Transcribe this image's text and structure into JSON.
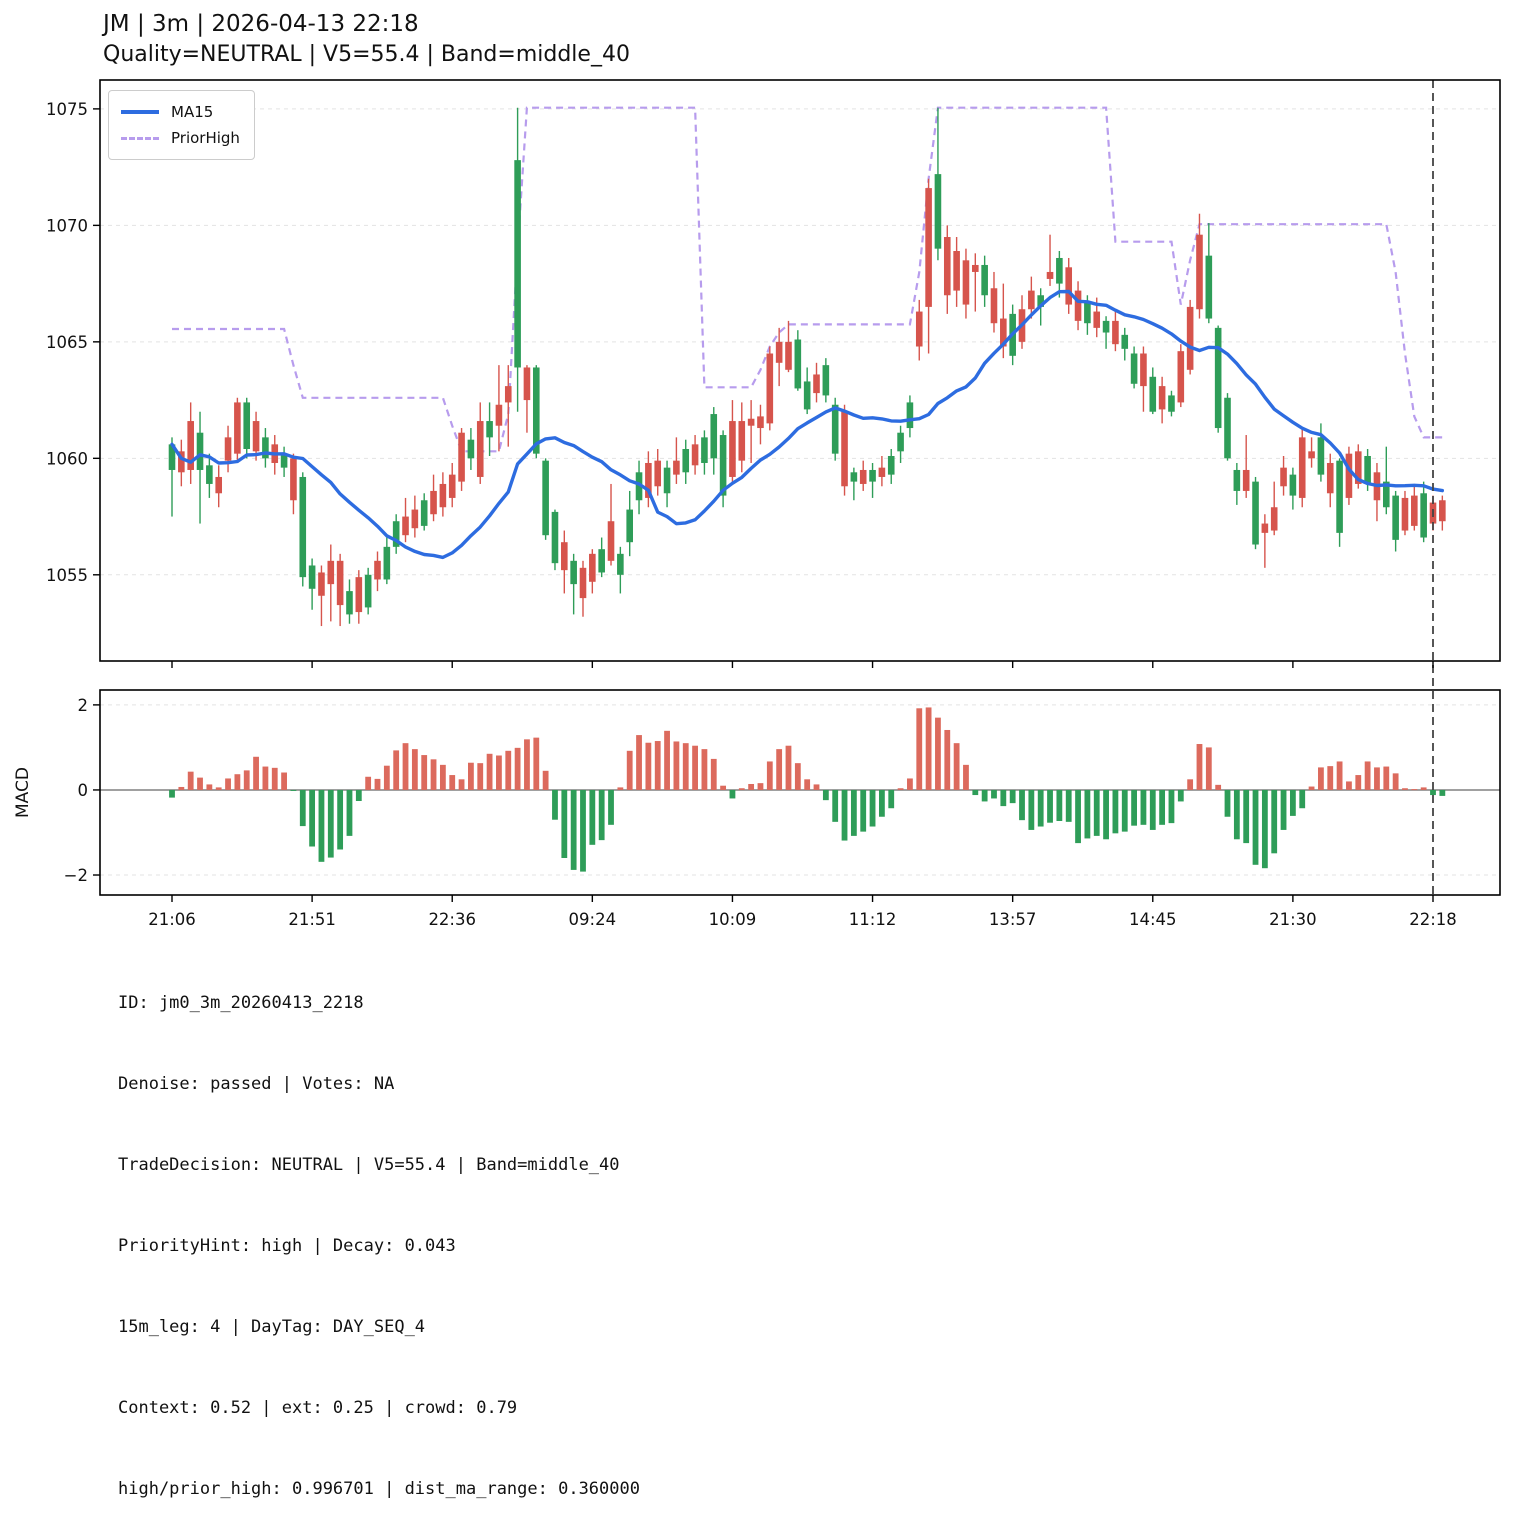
{
  "header": {
    "title": "JM | 3m | 2026-04-13 22:18",
    "subtitle": "Quality=NEUTRAL | V5=55.4 | Band=middle_40"
  },
  "legend": {
    "items": [
      {
        "label": "MA15",
        "style": "solid",
        "color": "#2d6ce0"
      },
      {
        "label": "PriorHigh",
        "style": "dashed",
        "color": "#b79ced"
      }
    ]
  },
  "footer": {
    "lines": [
      "ID: jm0_3m_20260413_2218",
      "Denoise: passed | Votes: NA",
      "TradeDecision: NEUTRAL | V5=55.4 | Band=middle_40",
      "PriorityHint: high | Decay: 0.043",
      "15m_leg: 4 | DayTag: DAY_SEQ_4",
      "Context: 0.52 | ext: 0.25 | crowd: 0.79",
      "high/prior_high: 0.996701 | dist_ma_range: 0.360000"
    ]
  },
  "colors": {
    "up": "#2e9d58",
    "down": "#d6544c",
    "macd_up": "#2e9d58",
    "macd_down": "#dc6a5d",
    "ma15": "#2d6ce0",
    "prior_high": "#b79ced",
    "grid": "#e3e3e3",
    "spine": "#000000",
    "vline": "#444444",
    "zero_line": "#808080",
    "text": "#111111"
  },
  "chart_data": [
    {
      "type": "candlestick",
      "title": "JM | 3m | 2026-04-13 22:18",
      "ylabel": "",
      "ylim": [
        1051.3,
        1076.24
      ],
      "yticks": [
        1055,
        1060,
        1065,
        1070,
        1075
      ],
      "x_tick_indices": [
        0,
        15,
        30,
        45,
        60,
        75,
        90,
        105,
        120,
        135
      ],
      "x_tick_labels": [
        "21:06",
        "21:51",
        "22:36",
        "09:24",
        "10:09",
        "11:12",
        "13:57",
        "14:45",
        "21:30",
        "22:18"
      ],
      "vline_index": 135,
      "legend_position": "upper-left",
      "grid": true,
      "ma15_period": 15,
      "ohlc": [
        [
          1059.5,
          1060.9,
          1057.5,
          1060.6
        ],
        [
          1060.3,
          1060.8,
          1058.8,
          1059.4
        ],
        [
          1061.6,
          1062.4,
          1058.9,
          1059.5
        ],
        [
          1059.5,
          1062.0,
          1057.2,
          1061.1
        ],
        [
          1058.9,
          1060.2,
          1058.3,
          1059.7
        ],
        [
          1059.2,
          1059.7,
          1057.9,
          1058.5
        ],
        [
          1060.9,
          1061.4,
          1059.4,
          1059.9
        ],
        [
          1062.4,
          1062.6,
          1059.9,
          1060.2
        ],
        [
          1060.4,
          1062.6,
          1060.0,
          1062.4
        ],
        [
          1061.6,
          1062.0,
          1059.9,
          1060.3
        ],
        [
          1060.0,
          1061.3,
          1059.6,
          1060.9
        ],
        [
          1060.6,
          1061.0,
          1059.3,
          1059.8
        ],
        [
          1059.6,
          1060.5,
          1059.2,
          1060.2
        ],
        [
          1060.0,
          1060.2,
          1057.6,
          1058.2
        ],
        [
          1054.9,
          1059.4,
          1054.5,
          1059.2
        ],
        [
          1054.4,
          1055.7,
          1053.5,
          1055.4
        ],
        [
          1055.1,
          1055.4,
          1052.8,
          1054.1
        ],
        [
          1055.6,
          1056.3,
          1053.0,
          1054.6
        ],
        [
          1055.6,
          1055.9,
          1052.8,
          1053.7
        ],
        [
          1053.3,
          1054.8,
          1052.9,
          1054.3
        ],
        [
          1054.9,
          1055.2,
          1052.9,
          1053.4
        ],
        [
          1053.6,
          1055.3,
          1053.3,
          1055.0
        ],
        [
          1055.6,
          1056.0,
          1054.3,
          1054.8
        ],
        [
          1054.8,
          1056.6,
          1054.6,
          1056.2
        ],
        [
          1056.2,
          1057.6,
          1055.9,
          1057.3
        ],
        [
          1057.5,
          1058.3,
          1056.4,
          1056.7
        ],
        [
          1057.8,
          1058.4,
          1056.6,
          1057.0
        ],
        [
          1057.1,
          1058.5,
          1056.9,
          1058.2
        ],
        [
          1058.6,
          1059.3,
          1057.3,
          1057.6
        ],
        [
          1058.9,
          1059.4,
          1057.5,
          1057.9
        ],
        [
          1059.3,
          1059.8,
          1057.9,
          1058.3
        ],
        [
          1061.1,
          1061.3,
          1058.6,
          1059.0
        ],
        [
          1060.0,
          1061.3,
          1059.5,
          1060.8
        ],
        [
          1061.6,
          1062.4,
          1058.9,
          1059.2
        ],
        [
          1060.9,
          1062.4,
          1060.1,
          1061.6
        ],
        [
          1062.3,
          1064.0,
          1060.3,
          1061.4
        ],
        [
          1063.1,
          1064.0,
          1060.5,
          1062.4
        ],
        [
          1063.9,
          1075.05,
          1062.0,
          1072.8
        ],
        [
          1063.9,
          1064.0,
          1061.1,
          1062.5
        ],
        [
          1060.2,
          1064.0,
          1060.0,
          1063.9
        ],
        [
          1056.7,
          1060.0,
          1056.5,
          1059.9
        ],
        [
          1055.5,
          1057.8,
          1055.2,
          1057.7
        ],
        [
          1056.4,
          1056.9,
          1054.2,
          1055.2
        ],
        [
          1054.6,
          1055.9,
          1053.3,
          1055.6
        ],
        [
          1055.3,
          1055.6,
          1053.2,
          1054.0
        ],
        [
          1055.9,
          1056.1,
          1054.2,
          1054.7
        ],
        [
          1055.1,
          1056.6,
          1054.9,
          1056.1
        ],
        [
          1057.3,
          1058.9,
          1055.4,
          1055.6
        ],
        [
          1055.0,
          1056.2,
          1054.2,
          1055.9
        ],
        [
          1056.4,
          1058.6,
          1055.8,
          1057.8
        ],
        [
          1058.2,
          1059.9,
          1057.6,
          1059.4
        ],
        [
          1059.8,
          1060.3,
          1057.9,
          1058.3
        ],
        [
          1059.9,
          1060.4,
          1058.4,
          1058.8
        ],
        [
          1058.5,
          1059.9,
          1057.9,
          1059.6
        ],
        [
          1059.9,
          1060.9,
          1058.9,
          1059.3
        ],
        [
          1059.4,
          1060.8,
          1058.9,
          1060.4
        ],
        [
          1060.6,
          1061.0,
          1059.3,
          1059.7
        ],
        [
          1059.8,
          1061.2,
          1059.3,
          1060.9
        ],
        [
          1060.0,
          1062.2,
          1059.3,
          1061.9
        ],
        [
          1058.4,
          1061.2,
          1057.9,
          1061.0
        ],
        [
          1061.6,
          1062.5,
          1058.9,
          1059.2
        ],
        [
          1061.6,
          1062.4,
          1059.4,
          1059.9
        ],
        [
          1061.7,
          1062.5,
          1059.8,
          1061.4
        ],
        [
          1061.8,
          1062.3,
          1060.6,
          1061.3
        ],
        [
          1064.5,
          1064.8,
          1061.2,
          1061.5
        ],
        [
          1065.0,
          1065.6,
          1063.1,
          1064.1
        ],
        [
          1065.0,
          1065.9,
          1063.7,
          1063.8
        ],
        [
          1063.0,
          1065.5,
          1062.9,
          1065.1
        ],
        [
          1062.1,
          1063.9,
          1061.9,
          1063.3
        ],
        [
          1063.6,
          1064.1,
          1062.4,
          1062.8
        ],
        [
          1062.7,
          1064.3,
          1062.4,
          1064.0
        ],
        [
          1060.2,
          1062.6,
          1059.9,
          1062.3
        ],
        [
          1062.0,
          1062.3,
          1058.4,
          1058.8
        ],
        [
          1059.0,
          1059.6,
          1058.2,
          1059.4
        ],
        [
          1059.5,
          1059.9,
          1058.6,
          1058.9
        ],
        [
          1059.0,
          1059.8,
          1058.3,
          1059.5
        ],
        [
          1059.6,
          1060.1,
          1058.8,
          1059.2
        ],
        [
          1059.3,
          1060.4,
          1058.9,
          1060.1
        ],
        [
          1060.3,
          1061.4,
          1059.8,
          1061.1
        ],
        [
          1061.3,
          1062.7,
          1060.9,
          1062.4
        ],
        [
          1066.3,
          1066.8,
          1064.2,
          1064.8
        ],
        [
          1071.6,
          1072.0,
          1064.5,
          1066.5
        ],
        [
          1069.0,
          1075.05,
          1068.5,
          1072.2
        ],
        [
          1069.5,
          1070.0,
          1066.2,
          1067.0
        ],
        [
          1068.9,
          1069.5,
          1066.5,
          1067.2
        ],
        [
          1068.5,
          1069.0,
          1066.0,
          1066.6
        ],
        [
          1068.3,
          1068.8,
          1066.3,
          1068.0
        ],
        [
          1067.0,
          1068.7,
          1066.5,
          1068.3
        ],
        [
          1067.3,
          1068.0,
          1065.4,
          1065.8
        ],
        [
          1066.0,
          1067.5,
          1064.3,
          1064.8
        ],
        [
          1064.4,
          1066.6,
          1064.0,
          1066.2
        ],
        [
          1066.4,
          1067.0,
          1064.7,
          1065.0
        ],
        [
          1067.2,
          1067.8,
          1066.0,
          1066.4
        ],
        [
          1066.5,
          1067.3,
          1065.7,
          1067.0
        ],
        [
          1068.0,
          1069.6,
          1067.4,
          1067.7
        ],
        [
          1067.5,
          1068.9,
          1066.9,
          1068.6
        ],
        [
          1068.2,
          1068.6,
          1066.2,
          1066.6
        ],
        [
          1067.2,
          1067.6,
          1065.5,
          1065.9
        ],
        [
          1065.8,
          1067.0,
          1065.3,
          1066.7
        ],
        [
          1066.3,
          1066.9,
          1065.2,
          1065.6
        ],
        [
          1065.4,
          1066.1,
          1064.7,
          1065.9
        ],
        [
          1065.9,
          1066.3,
          1064.6,
          1064.9
        ],
        [
          1064.7,
          1065.6,
          1064.2,
          1065.3
        ],
        [
          1063.2,
          1064.8,
          1063.0,
          1064.5
        ],
        [
          1064.5,
          1064.8,
          1062.0,
          1063.1
        ],
        [
          1062.0,
          1063.9,
          1061.9,
          1063.5
        ],
        [
          1063.1,
          1063.5,
          1061.5,
          1062.1
        ],
        [
          1062.0,
          1062.9,
          1061.8,
          1062.7
        ],
        [
          1064.6,
          1064.9,
          1062.2,
          1062.4
        ],
        [
          1066.5,
          1066.8,
          1063.6,
          1063.8
        ],
        [
          1069.6,
          1070.5,
          1066.0,
          1066.4
        ],
        [
          1066.0,
          1070.1,
          1065.8,
          1068.7
        ],
        [
          1061.3,
          1065.7,
          1061.1,
          1065.6
        ],
        [
          1060.0,
          1062.8,
          1059.9,
          1062.6
        ],
        [
          1058.6,
          1059.8,
          1058.0,
          1059.5
        ],
        [
          1059.5,
          1061.0,
          1058.3,
          1058.6
        ],
        [
          1056.3,
          1059.2,
          1056.1,
          1059.0
        ],
        [
          1057.2,
          1057.6,
          1055.3,
          1056.8
        ],
        [
          1057.9,
          1059.0,
          1056.7,
          1056.9
        ],
        [
          1059.6,
          1060.1,
          1058.4,
          1058.8
        ],
        [
          1058.4,
          1059.6,
          1057.8,
          1059.3
        ],
        [
          1060.9,
          1061.3,
          1057.9,
          1058.3
        ],
        [
          1060.3,
          1060.9,
          1059.6,
          1060.0
        ],
        [
          1059.3,
          1061.5,
          1059.0,
          1060.9
        ],
        [
          1059.8,
          1060.2,
          1057.9,
          1058.5
        ],
        [
          1056.8,
          1060.0,
          1056.2,
          1059.9
        ],
        [
          1060.2,
          1060.5,
          1058.0,
          1058.3
        ],
        [
          1060.3,
          1060.6,
          1058.7,
          1058.9
        ],
        [
          1058.9,
          1060.4,
          1058.6,
          1060.1
        ],
        [
          1059.4,
          1059.8,
          1057.3,
          1058.2
        ],
        [
          1057.9,
          1060.5,
          1057.6,
          1059.0
        ],
        [
          1056.5,
          1058.6,
          1056.0,
          1058.4
        ],
        [
          1058.3,
          1058.6,
          1056.7,
          1056.9
        ],
        [
          1058.4,
          1058.9,
          1056.9,
          1057.1
        ],
        [
          1056.6,
          1059.0,
          1056.4,
          1058.5
        ],
        [
          1058.1,
          1058.4,
          1056.9,
          1057.2
        ],
        [
          1058.2,
          1058.4,
          1056.9,
          1057.3
        ]
      ],
      "prior_high": [
        1065.55,
        1065.55,
        1065.55,
        1065.55,
        1065.55,
        1065.55,
        1065.55,
        1065.55,
        1065.55,
        1065.55,
        1065.55,
        1065.55,
        1065.55,
        1064.0,
        1062.6,
        1062.6,
        1062.6,
        1062.6,
        1062.6,
        1062.6,
        1062.6,
        1062.6,
        1062.6,
        1062.6,
        1062.6,
        1062.6,
        1062.6,
        1062.6,
        1062.6,
        1062.6,
        1061.4,
        1060.3,
        1060.3,
        1060.3,
        1060.3,
        1060.3,
        1061.9,
        1069.0,
        1075.05,
        1075.05,
        1075.05,
        1075.05,
        1075.05,
        1075.05,
        1075.05,
        1075.05,
        1075.05,
        1075.05,
        1075.05,
        1075.05,
        1075.05,
        1075.05,
        1075.05,
        1075.05,
        1075.05,
        1075.05,
        1075.05,
        1063.05,
        1063.05,
        1063.05,
        1063.05,
        1063.05,
        1063.05,
        1063.8,
        1064.8,
        1065.4,
        1065.75,
        1065.75,
        1065.75,
        1065.75,
        1065.75,
        1065.75,
        1065.75,
        1065.75,
        1065.75,
        1065.75,
        1065.75,
        1065.75,
        1065.75,
        1065.75,
        1068.0,
        1072.0,
        1075.05,
        1075.05,
        1075.05,
        1075.05,
        1075.05,
        1075.05,
        1075.05,
        1075.05,
        1075.05,
        1075.05,
        1075.05,
        1075.05,
        1075.05,
        1075.05,
        1075.05,
        1075.05,
        1075.05,
        1075.05,
        1075.05,
        1069.3,
        1069.3,
        1069.3,
        1069.3,
        1069.3,
        1069.3,
        1069.3,
        1066.6,
        1068.5,
        1070.05,
        1070.05,
        1070.05,
        1070.05,
        1070.05,
        1070.05,
        1070.05,
        1070.05,
        1070.05,
        1070.05,
        1070.05,
        1070.05,
        1070.05,
        1070.05,
        1070.05,
        1070.05,
        1070.05,
        1070.05,
        1070.05,
        1070.05,
        1070.05,
        1068.0,
        1064.5,
        1061.8,
        1060.9,
        1060.9,
        1060.9
      ]
    },
    {
      "type": "bar",
      "name": "MACD",
      "ylabel": "MACD",
      "ylim": [
        -2.47,
        2.35
      ],
      "yticks": [
        -2,
        0,
        2
      ],
      "grid": true,
      "values": [
        -0.18,
        0.07,
        0.43,
        0.29,
        0.13,
        0.06,
        0.27,
        0.37,
        0.46,
        0.78,
        0.55,
        0.52,
        0.41,
        -0.02,
        -0.85,
        -1.33,
        -1.69,
        -1.59,
        -1.4,
        -1.08,
        -0.26,
        0.31,
        0.26,
        0.57,
        0.93,
        1.1,
        0.96,
        0.82,
        0.72,
        0.59,
        0.35,
        0.25,
        0.64,
        0.63,
        0.85,
        0.81,
        0.92,
        0.99,
        1.19,
        1.23,
        0.45,
        -0.7,
        -1.6,
        -1.88,
        -1.92,
        -1.29,
        -1.18,
        -0.82,
        0.06,
        0.92,
        1.29,
        1.11,
        1.15,
        1.39,
        1.14,
        1.1,
        1.04,
        0.96,
        0.73,
        0.1,
        -0.2,
        0.04,
        0.14,
        0.16,
        0.67,
        0.96,
        1.04,
        0.63,
        0.25,
        0.13,
        -0.24,
        -0.75,
        -1.19,
        -1.08,
        -0.98,
        -0.86,
        -0.63,
        -0.43,
        0.04,
        0.27,
        1.92,
        1.94,
        1.7,
        1.41,
        1.1,
        0.59,
        -0.12,
        -0.27,
        -0.2,
        -0.38,
        -0.31,
        -0.71,
        -0.94,
        -0.86,
        -0.77,
        -0.73,
        -0.75,
        -1.25,
        -1.14,
        -1.08,
        -1.16,
        -1.02,
        -0.98,
        -0.84,
        -0.82,
        -0.94,
        -0.82,
        -0.78,
        -0.27,
        0.25,
        1.08,
        1.0,
        0.12,
        -0.63,
        -1.16,
        -1.25,
        -1.76,
        -1.84,
        -1.49,
        -0.94,
        -0.61,
        -0.43,
        0.08,
        0.53,
        0.56,
        0.67,
        0.2,
        0.35,
        0.67,
        0.53,
        0.55,
        0.39,
        0.04,
        0.02,
        0.06,
        -0.12,
        -0.14
      ]
    }
  ]
}
